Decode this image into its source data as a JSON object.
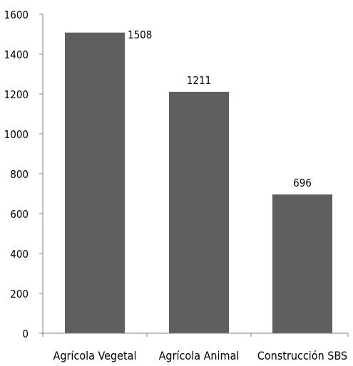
{
  "chart_data": {
    "type": "bar",
    "categories": [
      "Agrícola Vegetal",
      "Agrícola Animal",
      "Construcción SBS"
    ],
    "values": [
      1508,
      1211,
      696
    ],
    "data_labels": [
      "1508",
      "1211",
      "696"
    ],
    "ylim": [
      0,
      1600
    ],
    "yticks": [
      "0",
      "200",
      "400",
      "600",
      "800",
      "1000",
      "1200",
      "1400",
      "1600"
    ],
    "title": "",
    "xlabel": "",
    "ylabel": "",
    "grid": false,
    "legend": "none",
    "bar_color": "#5f5f5f",
    "axis_color": "#7f7f7f"
  }
}
